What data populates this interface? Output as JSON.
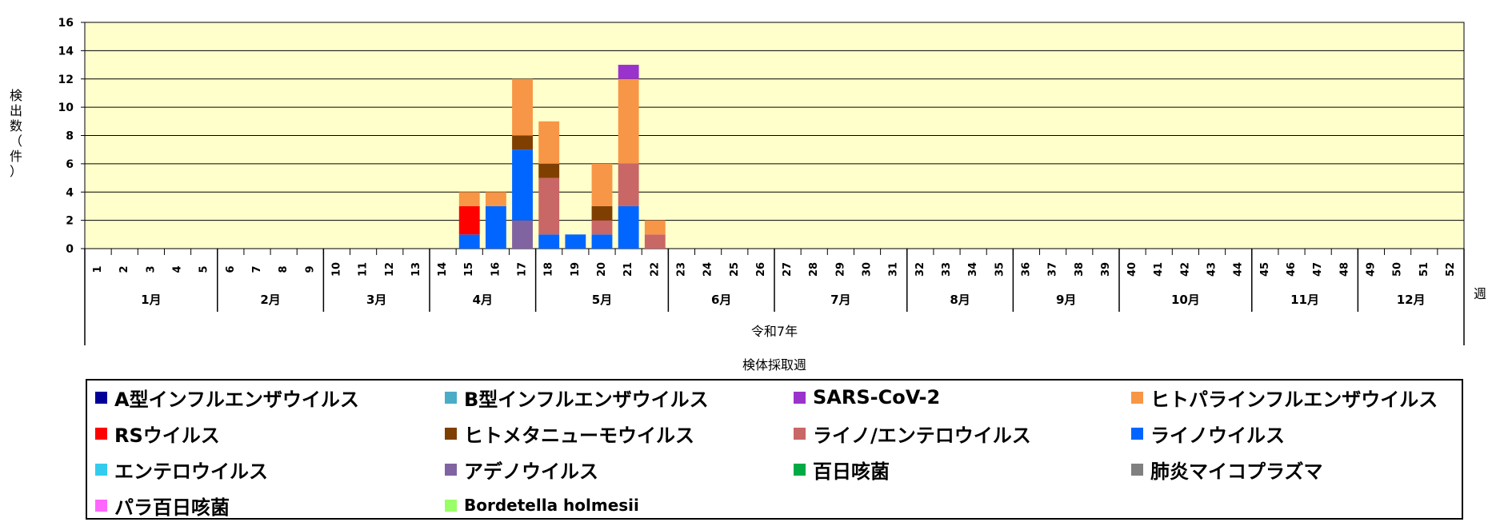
{
  "chart_data": {
    "type": "bar",
    "stacked": true,
    "title": "",
    "ylabel": "検出数（件）",
    "xlabel": "検体採取週",
    "x_unit": "週",
    "year_label": "令和7年",
    "ylim": [
      0,
      16
    ],
    "yticks": [
      0,
      2,
      4,
      6,
      8,
      10,
      12,
      14,
      16
    ],
    "grid": true,
    "plot_background": "#FFFFCC",
    "legend_position": "bottom",
    "categories": [
      "1",
      "2",
      "3",
      "4",
      "5",
      "6",
      "7",
      "8",
      "9",
      "10",
      "11",
      "12",
      "13",
      "14",
      "15",
      "16",
      "17",
      "18",
      "19",
      "20",
      "21",
      "22",
      "23",
      "24",
      "25",
      "26",
      "27",
      "28",
      "29",
      "30",
      "31",
      "32",
      "33",
      "34",
      "35",
      "36",
      "37",
      "38",
      "39",
      "40",
      "41",
      "42",
      "43",
      "44",
      "45",
      "46",
      "47",
      "48",
      "49",
      "50",
      "51",
      "52"
    ],
    "months": [
      {
        "label": "1月",
        "weeks": 5
      },
      {
        "label": "2月",
        "weeks": 4
      },
      {
        "label": "3月",
        "weeks": 4
      },
      {
        "label": "4月",
        "weeks": 4
      },
      {
        "label": "5月",
        "weeks": 5
      },
      {
        "label": "6月",
        "weeks": 4
      },
      {
        "label": "7月",
        "weeks": 5
      },
      {
        "label": "8月",
        "weeks": 4
      },
      {
        "label": "9月",
        "weeks": 4
      },
      {
        "label": "10月",
        "weeks": 5
      },
      {
        "label": "11月",
        "weeks": 4
      },
      {
        "label": "12月",
        "weeks": 4
      }
    ],
    "series": [
      {
        "name": "A型インフルエンザウイルス",
        "color": "#000099",
        "values": {}
      },
      {
        "name": "B型インフルエンザウイルス",
        "color": "#4BACC6",
        "values": {}
      },
      {
        "name": "SARS-CoV-2",
        "color": "#9933CC",
        "values": {
          "21": 1
        }
      },
      {
        "name": "ヒトパラインフルエンザウイルス",
        "color": "#F79646",
        "values": {
          "15": 1,
          "16": 1,
          "17": 4,
          "18": 3,
          "20": 3,
          "21": 6,
          "22": 1
        }
      },
      {
        "name": "RSウイルス",
        "color": "#FF0000",
        "values": {
          "15": 2
        }
      },
      {
        "name": "ヒトメタニューモウイルス",
        "color": "#7F3F00",
        "values": {
          "17": 1,
          "18": 1,
          "20": 1
        }
      },
      {
        "name": "ライノ/エンテロウイルス",
        "color": "#C96666",
        "values": {
          "18": 4,
          "20": 1,
          "21": 3,
          "22": 1
        }
      },
      {
        "name": "ライノウイルス",
        "color": "#0066FF",
        "values": {
          "15": 1,
          "16": 3,
          "17": 5,
          "18": 1,
          "19": 1,
          "20": 1,
          "21": 3
        }
      },
      {
        "name": "エンテロウイルス",
        "color": "#33CCEE",
        "values": {}
      },
      {
        "name": "アデノウイルス",
        "color": "#8064A2",
        "values": {
          "17": 2
        }
      },
      {
        "name": "百日咳菌",
        "color": "#00AA44",
        "values": {}
      },
      {
        "name": "肺炎マイコプラズマ",
        "color": "#808080",
        "values": {}
      },
      {
        "name": "パラ百日咳菌",
        "color": "#FF66FF",
        "values": {}
      },
      {
        "name": "Bordetella holmesii",
        "color": "#99FF66",
        "values": {}
      }
    ],
    "stack_order": [
      "アデノウイルス",
      "ライノウイルス",
      "RSウイルス",
      "ライノ/エンテロウイルス",
      "ヒトメタニューモウイルス",
      "ヒトパラインフルエンザウイルス",
      "SARS-CoV-2"
    ]
  }
}
